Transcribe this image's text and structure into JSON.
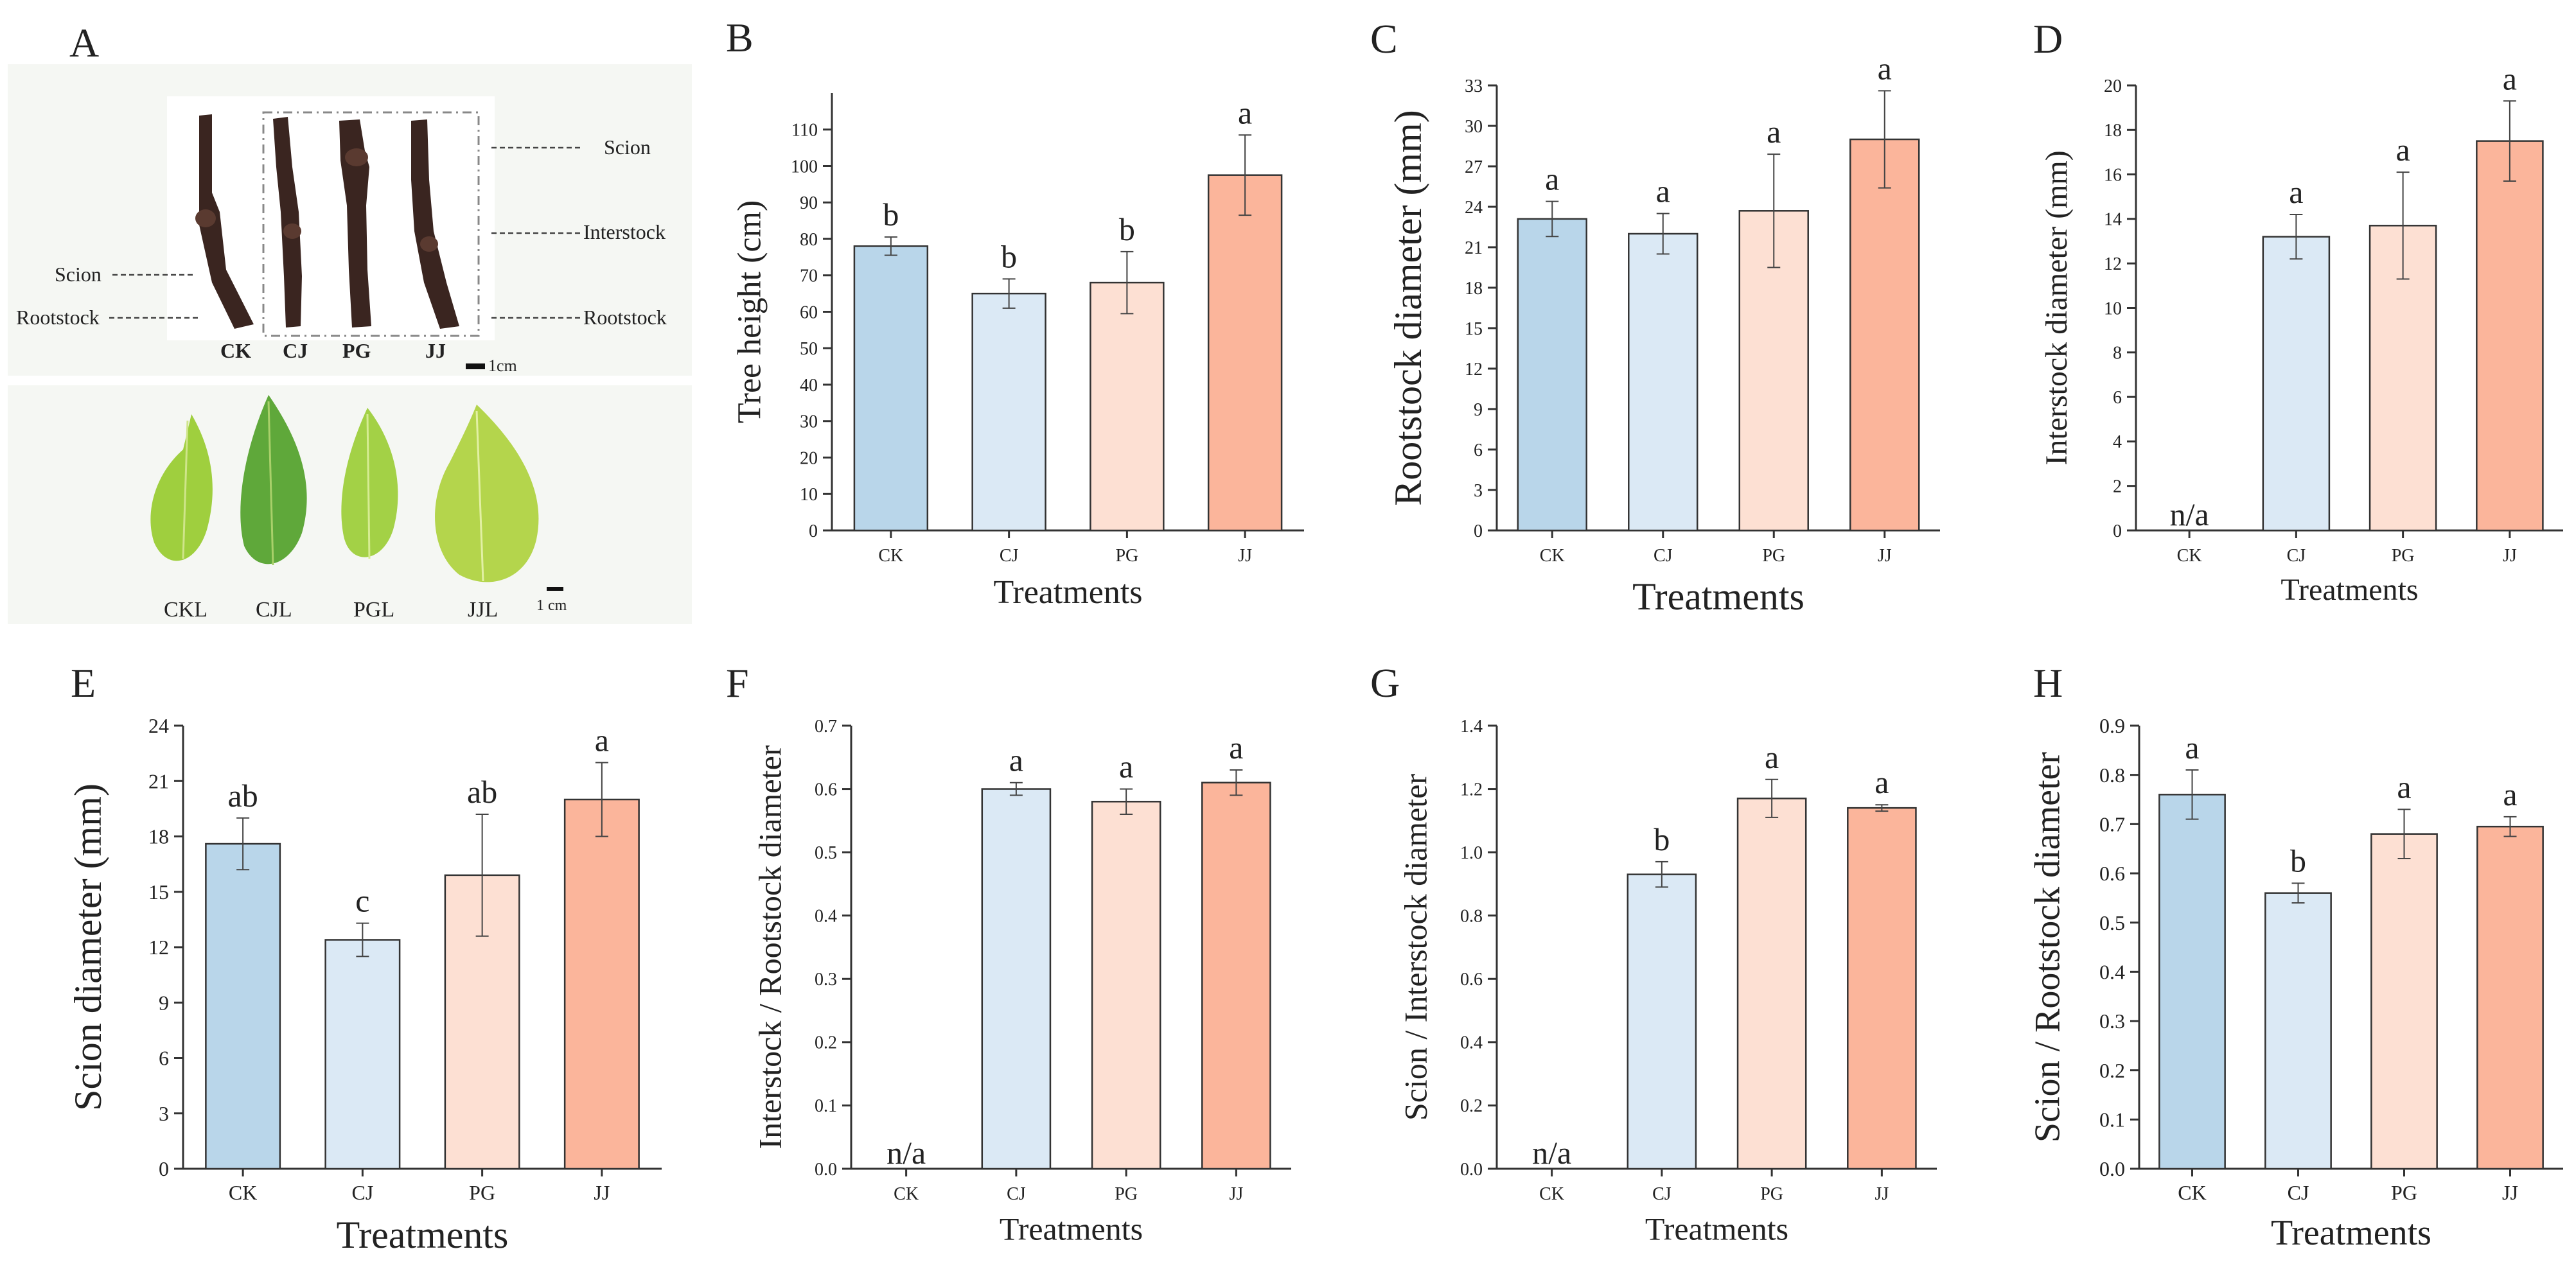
{
  "colors": {
    "CK": "#b9d6ea",
    "CJ": "#dbe9f5",
    "PG": "#fde0d3",
    "JJ": "#fbb59b",
    "axis": "#333333",
    "photo_bg": "#f5f7f3",
    "stem": "#3a2520",
    "leaf": "#9fcf3e"
  },
  "panel_a": {
    "letter": "A",
    "stem_callouts": {
      "scion_left": "Scion",
      "rootstock_left": "Rootstock",
      "scion_right": "Scion",
      "interstock_right": "Interstock",
      "rootstock_right": "Rootstock"
    },
    "stem_labels": [
      "CK",
      "CJ",
      "PG",
      "JJ"
    ],
    "stem_scale": "1cm",
    "leaf_labels": [
      "CKL",
      "CJL",
      "PGL",
      "JJL"
    ],
    "leaf_scale": "1 cm"
  },
  "chart_data": [
    {
      "id": "B",
      "letter": "B",
      "type": "bar",
      "title": "",
      "xlabel": "Treatments",
      "ylabel": "Tree height (cm)",
      "categories": [
        "CK",
        "CJ",
        "PG",
        "JJ"
      ],
      "values": [
        78,
        65,
        68,
        97.5
      ],
      "errors": [
        2.5,
        4,
        8.5,
        11
      ],
      "letters": [
        "b",
        "b",
        "b",
        "a"
      ],
      "ylim": [
        0,
        120
      ],
      "yticks": [
        0,
        10,
        20,
        30,
        40,
        50,
        60,
        70,
        80,
        90,
        100,
        110
      ],
      "ytick_labels": [
        "0",
        "10",
        "20",
        "30",
        "40",
        "50",
        "60",
        "70",
        "80",
        "90",
        "100",
        "110"
      ]
    },
    {
      "id": "C",
      "letter": "C",
      "type": "bar",
      "title": "",
      "xlabel": "Treatments",
      "ylabel": "Rootstock diameter (mm)",
      "categories": [
        "CK",
        "CJ",
        "PG",
        "JJ"
      ],
      "values": [
        23.1,
        22,
        23.7,
        29
      ],
      "errors": [
        1.3,
        1.5,
        4.2,
        3.6
      ],
      "letters": [
        "a",
        "a",
        "a",
        "a"
      ],
      "ylim": [
        0,
        33
      ],
      "yticks": [
        0,
        3,
        6,
        9,
        12,
        15,
        18,
        21,
        24,
        27,
        30,
        33
      ],
      "ytick_labels": [
        "0",
        "3",
        "6",
        "9",
        "12",
        "15",
        "18",
        "21",
        "24",
        "27",
        "30",
        "33"
      ]
    },
    {
      "id": "D",
      "letter": "D",
      "type": "bar",
      "title": "",
      "xlabel": "Treatments",
      "ylabel": "Interstock diameter (mm)",
      "categories": [
        "CK",
        "CJ",
        "PG",
        "JJ"
      ],
      "values": [
        null,
        13.2,
        13.7,
        17.5
      ],
      "errors": [
        null,
        1,
        2.4,
        1.8
      ],
      "letters": [
        "n/a",
        "a",
        "a",
        "a"
      ],
      "ylim": [
        0,
        20
      ],
      "yticks": [
        0,
        2,
        4,
        6,
        8,
        10,
        12,
        14,
        16,
        18,
        20
      ],
      "ytick_labels": [
        "0",
        "2",
        "4",
        "6",
        "8",
        "10",
        "12",
        "14",
        "16",
        "18",
        "20"
      ]
    },
    {
      "id": "E",
      "letter": "E",
      "type": "bar",
      "title": "",
      "xlabel": "Treatments",
      "ylabel": "Scion diameter (mm)",
      "categories": [
        "CK",
        "CJ",
        "PG",
        "JJ"
      ],
      "values": [
        17.6,
        12.4,
        15.9,
        20
      ],
      "errors": [
        1.4,
        0.9,
        3.3,
        2
      ],
      "letters": [
        "ab",
        "c",
        "ab",
        "a"
      ],
      "ylim": [
        0,
        24
      ],
      "yticks": [
        0,
        3,
        6,
        9,
        12,
        15,
        18,
        21,
        24
      ],
      "ytick_labels": [
        "0",
        "3",
        "6",
        "9",
        "12",
        "15",
        "18",
        "21",
        "24"
      ]
    },
    {
      "id": "F",
      "letter": "F",
      "type": "bar",
      "title": "",
      "xlabel": "Treatments",
      "ylabel": "Interstock / Rootstock diameter",
      "categories": [
        "CK",
        "CJ",
        "PG",
        "JJ"
      ],
      "values": [
        null,
        0.6,
        0.58,
        0.61
      ],
      "errors": [
        null,
        0.01,
        0.02,
        0.02
      ],
      "letters": [
        "n/a",
        "a",
        "a",
        "a"
      ],
      "ylim": [
        0,
        0.7
      ],
      "yticks": [
        0,
        0.1,
        0.2,
        0.3,
        0.4,
        0.5,
        0.6,
        0.7
      ],
      "ytick_labels": [
        "0.0",
        "0.1",
        "0.2",
        "0.3",
        "0.4",
        "0.5",
        "0.6",
        "0.7"
      ]
    },
    {
      "id": "G",
      "letter": "G",
      "type": "bar",
      "title": "",
      "xlabel": "Treatments",
      "ylabel": "Scion / Interstock diameter",
      "categories": [
        "CK",
        "CJ",
        "PG",
        "JJ"
      ],
      "values": [
        null,
        0.93,
        1.17,
        1.14
      ],
      "errors": [
        null,
        0.04,
        0.06,
        0.01
      ],
      "letters": [
        "n/a",
        "b",
        "a",
        "a"
      ],
      "ylim": [
        0,
        1.4
      ],
      "yticks": [
        0,
        0.2,
        0.4,
        0.6,
        0.8,
        1,
        1.2,
        1.4
      ],
      "ytick_labels": [
        "0.0",
        "0.2",
        "0.4",
        "0.6",
        "0.8",
        "1.0",
        "1.2",
        "1.4"
      ]
    },
    {
      "id": "H",
      "letter": "H",
      "type": "bar",
      "title": "",
      "xlabel": "Treatments",
      "ylabel": "Scion / Rootstock diameter",
      "categories": [
        "CK",
        "CJ",
        "PG",
        "JJ"
      ],
      "values": [
        0.76,
        0.56,
        0.68,
        0.695
      ],
      "errors": [
        0.05,
        0.02,
        0.05,
        0.02
      ],
      "letters": [
        "a",
        "b",
        "a",
        "a"
      ],
      "ylim": [
        0,
        0.9
      ],
      "yticks": [
        0,
        0.1,
        0.2,
        0.3,
        0.4,
        0.5,
        0.6,
        0.7,
        0.8,
        0.9
      ],
      "ytick_labels": [
        "0.0",
        "0.1",
        "0.2",
        "0.3",
        "0.4",
        "0.5",
        "0.6",
        "0.7",
        "0.8",
        "0.9"
      ]
    }
  ]
}
